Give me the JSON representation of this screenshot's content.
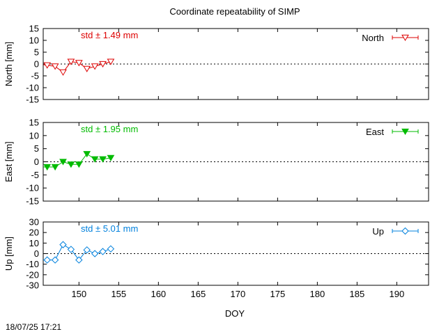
{
  "title": "Coordinate repeatability of SIMP",
  "timestamp": "18/07/25 17:21",
  "chart_data": [
    {
      "type": "line",
      "component": "north",
      "series": [
        {
          "name": "North",
          "color": "#dd0000",
          "marker": "triangle-down-open",
          "x": [
            146.0,
            147.0,
            148.0,
            149.0,
            150.0,
            151.0,
            152.0,
            153.0,
            154.0
          ],
          "y": [
            -0.5,
            -1.0,
            -3.5,
            1.0,
            0.5,
            -2.0,
            -1.0,
            0.0,
            1.0
          ]
        }
      ],
      "annotation": "std ± 1.49 mm",
      "ylabel": "North [mm]",
      "ylim": [
        -15,
        15
      ],
      "yticks": [
        15,
        10,
        5,
        0,
        -5,
        -10,
        -15
      ],
      "xlim": [
        145.5,
        194
      ],
      "zero_line": true,
      "legend_position": "top-right"
    },
    {
      "type": "line",
      "component": "east",
      "series": [
        {
          "name": "East",
          "color": "#00bb00",
          "marker": "triangle-down-filled",
          "x": [
            146.0,
            147.0,
            148.0,
            149.0,
            150.0,
            151.0,
            152.0,
            153.0,
            154.0
          ],
          "y": [
            -2.0,
            -2.0,
            0.0,
            -1.0,
            -1.0,
            3.0,
            1.0,
            1.0,
            1.5
          ]
        }
      ],
      "annotation": "std ± 1.95 mm",
      "ylabel": "East [mm]",
      "ylim": [
        -15,
        15
      ],
      "yticks": [
        15,
        10,
        5,
        0,
        -5,
        -10,
        -15
      ],
      "xlim": [
        145.5,
        194
      ],
      "zero_line": true,
      "legend_position": "top-right"
    },
    {
      "type": "line",
      "component": "up",
      "series": [
        {
          "name": "Up",
          "color": "#0080dd",
          "marker": "diamond-open",
          "x": [
            146.0,
            147.0,
            148.0,
            149.0,
            150.0,
            151.0,
            152.0,
            153.0,
            154.0
          ],
          "y": [
            -6.0,
            -6.0,
            8.5,
            4.0,
            -6.0,
            3.5,
            0.0,
            2.0,
            4.5
          ]
        }
      ],
      "annotation": "std ± 5.01 mm",
      "ylabel": "Up [mm]",
      "ylim": [
        -30,
        30
      ],
      "yticks": [
        30,
        20,
        10,
        0,
        -10,
        -20,
        -30
      ],
      "xlim": [
        145.5,
        194
      ],
      "xticks": [
        150,
        155,
        160,
        165,
        170,
        175,
        180,
        185,
        190
      ],
      "xlabel": "DOY",
      "zero_line": true,
      "legend_position": "top-right"
    }
  ]
}
